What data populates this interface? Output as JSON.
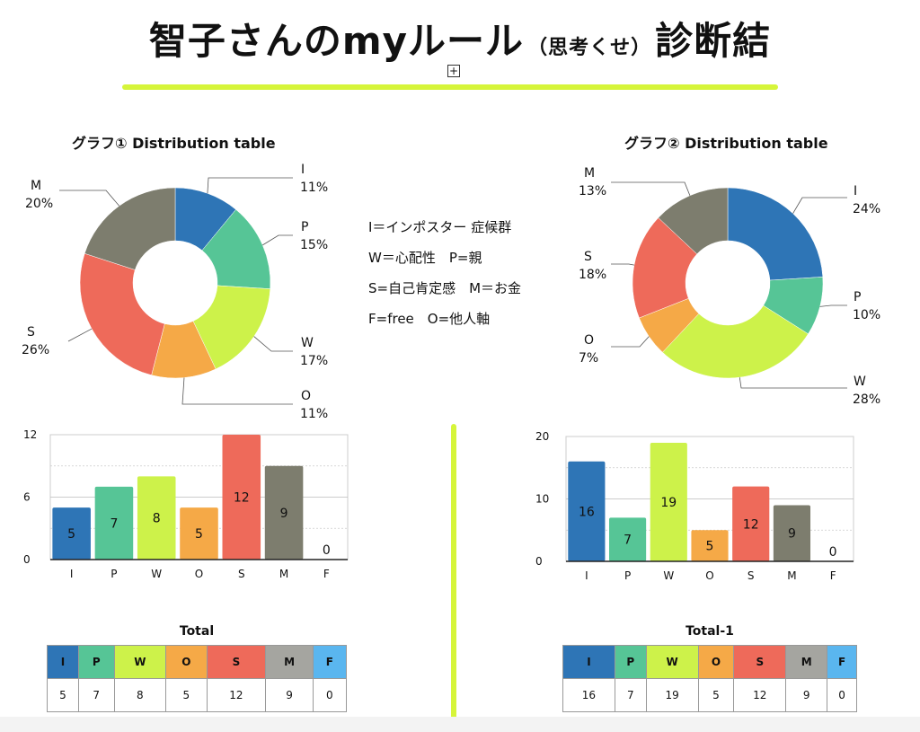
{
  "header": {
    "title_main": "智子さんのmyルール",
    "title_sub": "（思考くせ）",
    "title_end": "診断結"
  },
  "legend_lines": [
    "I＝インポスター 症候群",
    "W＝心配性　P=親",
    "S=自己肯定感　M＝お金",
    "F=free　O=他人軸"
  ],
  "colors": {
    "I": "#2e75b6",
    "P": "#56c596",
    "W": "#cdf24a",
    "O": "#f5a947",
    "S": "#ee6a5a",
    "M": "#7d7d6e",
    "M_table": "#a5a5a0",
    "F": "#5ab6ef"
  },
  "chart_data": [
    {
      "type": "pie",
      "title": "グラフ① Distribution table",
      "labels": [
        "I",
        "P",
        "W",
        "O",
        "S",
        "M"
      ],
      "values": [
        11,
        15,
        17,
        11,
        26,
        20
      ],
      "unit": "%"
    },
    {
      "type": "pie",
      "title": "グラフ② Distribution table",
      "labels": [
        "I",
        "P",
        "W",
        "O",
        "S",
        "M"
      ],
      "values": [
        24,
        10,
        28,
        7,
        18,
        13
      ],
      "unit": "%"
    },
    {
      "type": "bar",
      "categories": [
        "I",
        "P",
        "W",
        "O",
        "S",
        "M",
        "F"
      ],
      "values": [
        5,
        7,
        8,
        5,
        12,
        9,
        0
      ],
      "ylim": [
        0,
        12
      ],
      "yticks": [
        0,
        6,
        12
      ],
      "grid": true
    },
    {
      "type": "bar",
      "categories": [
        "I",
        "P",
        "W",
        "O",
        "S",
        "M",
        "F"
      ],
      "values": [
        16,
        7,
        19,
        5,
        12,
        9,
        0
      ],
      "ylim": [
        0,
        20
      ],
      "yticks": [
        0,
        10,
        20
      ],
      "grid": true
    },
    {
      "type": "table",
      "title": "Total",
      "columns": [
        "I",
        "P",
        "W",
        "O",
        "S",
        "M",
        "F"
      ],
      "values": [
        "5",
        "7",
        "8",
        "5",
        "12",
        "9",
        "0"
      ]
    },
    {
      "type": "table",
      "title": "Total-1",
      "columns": [
        "I",
        "P",
        "W",
        "O",
        "S",
        "M",
        "F"
      ],
      "values": [
        "16",
        "7",
        "19",
        "5",
        "12",
        "9",
        "0"
      ]
    }
  ]
}
